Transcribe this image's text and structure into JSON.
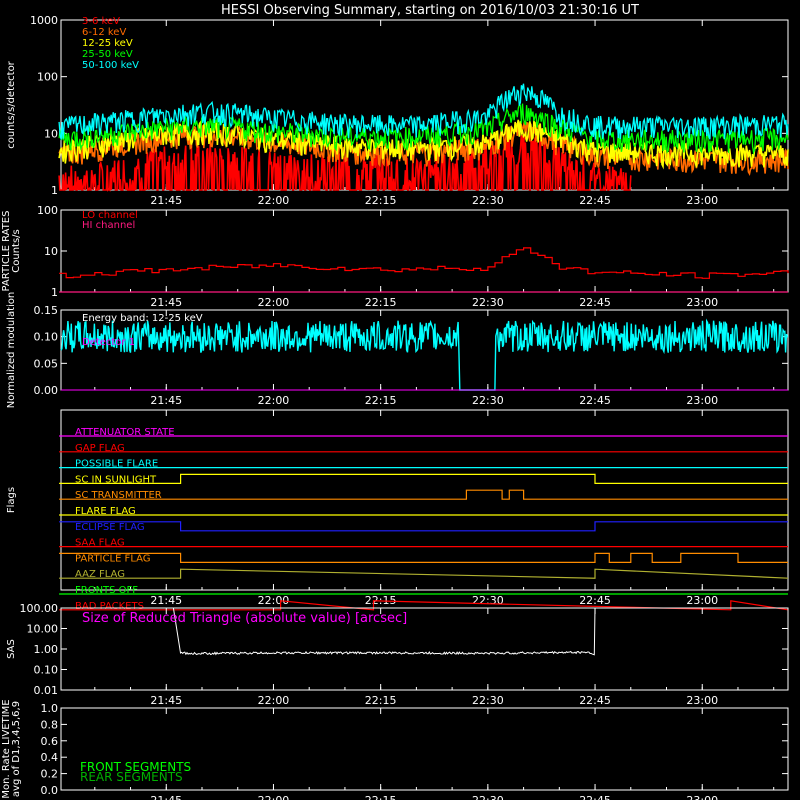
{
  "title": "HESSI Observing Summary, starting on 2016/10/03 21:30:16 UT",
  "time_axis": {
    "ticks": [
      "21:45",
      "22:00",
      "22:15",
      "22:30",
      "22:45",
      "23:00"
    ]
  },
  "colors": {
    "axis": "#ffffff",
    "e3_6": "#ff0000",
    "e6_12": "#ff6a00",
    "e12_25": "#ffff00",
    "e25_50": "#00ff00",
    "e50_100": "#00ffff",
    "lo_channel": "#ff0000",
    "hi_channel": "#ff1a80",
    "modulation": "#00ffff",
    "energy_band_text": "#ffffff",
    "detector_text": "#ff00ff",
    "magenta_flag": "#ff00ff",
    "red_flag": "#ff0000",
    "cyan_flag": "#00ffff",
    "yellow_flag": "#ffff00",
    "orange_flag": "#ff8c00",
    "blue_flag": "#2020ff",
    "olive_flag": "#b0b030",
    "green_flag": "#00ff00",
    "sas": "#ffffff",
    "front_segments": "#00ff00",
    "rear_segments": "#00b000"
  },
  "chart_data": [
    {
      "type": "line",
      "panel": "count-rates",
      "ylabel": "counts/s/detector",
      "yscale": "log",
      "ylim": [
        1,
        1000
      ],
      "y_ticks": [
        "1",
        "10",
        "100",
        "1000"
      ],
      "legend_placement": "top-left",
      "series": [
        {
          "name": "3-6 keV",
          "x": [
            "21:30",
            "21:35",
            "21:40",
            "21:45",
            "21:50",
            "21:55",
            "22:00",
            "22:10",
            "22:20",
            "22:25",
            "22:30",
            "22:35",
            "22:40",
            "22:45",
            "22:50"
          ],
          "values": [
            1.3,
            1.5,
            2,
            3,
            3.5,
            3,
            2.5,
            2.2,
            2,
            2.2,
            3,
            5,
            3,
            1.5,
            1.2
          ]
        },
        {
          "name": "6-12 keV",
          "x": [
            "21:30",
            "21:40",
            "21:45",
            "21:50",
            "21:55",
            "22:00",
            "22:10",
            "22:20",
            "22:30",
            "22:35",
            "22:40",
            "22:45",
            "23:00",
            "23:12"
          ],
          "values": [
            4,
            7,
            9,
            10,
            9,
            7,
            5,
            4.5,
            6,
            12,
            7,
            4,
            3.5,
            3.5
          ]
        },
        {
          "name": "12-25 keV",
          "x": [
            "21:30",
            "21:40",
            "21:45",
            "21:50",
            "21:55",
            "22:00",
            "22:10",
            "22:20",
            "22:30",
            "22:35",
            "22:40",
            "22:45",
            "23:00",
            "23:12"
          ],
          "values": [
            5,
            8,
            10,
            11,
            10,
            8,
            6,
            5.5,
            7,
            13,
            8,
            5,
            4.5,
            4.5
          ]
        },
        {
          "name": "25-50 keV",
          "x": [
            "21:30",
            "21:40",
            "21:45",
            "21:50",
            "21:55",
            "22:00",
            "22:10",
            "22:20",
            "22:30",
            "22:35",
            "22:40",
            "22:45",
            "23:00",
            "23:12"
          ],
          "values": [
            8,
            11,
            13,
            14,
            13,
            11,
            9,
            9,
            12,
            25,
            13,
            8,
            8,
            8.5
          ]
        },
        {
          "name": "50-100 keV",
          "x": [
            "21:30",
            "21:40",
            "21:45",
            "21:50",
            "21:55",
            "22:00",
            "22:10",
            "22:20",
            "22:30",
            "22:35",
            "22:40",
            "22:45",
            "23:00",
            "23:12"
          ],
          "values": [
            13,
            18,
            22,
            25,
            23,
            19,
            15,
            14,
            20,
            60,
            22,
            14,
            14,
            15
          ]
        }
      ]
    },
    {
      "type": "line",
      "panel": "particle-rates",
      "ylabel": "PARTICLE RATES Counts/s",
      "yscale": "log",
      "ylim": [
        1,
        100
      ],
      "y_ticks": [
        "1",
        "10",
        "100"
      ],
      "legend_placement": "top-left",
      "series": [
        {
          "name": "LO channel",
          "x": [
            "21:30",
            "21:45",
            "22:00",
            "22:15",
            "22:30",
            "22:35",
            "22:40",
            "22:45",
            "23:00",
            "23:12"
          ],
          "values": [
            2.5,
            3.5,
            4.5,
            3.5,
            4,
            11,
            4,
            3,
            2.5,
            3
          ]
        },
        {
          "name": "HI channel",
          "x": [
            "21:30",
            "23:12"
          ],
          "values": [
            1,
            1
          ]
        }
      ]
    },
    {
      "type": "line",
      "panel": "modulation",
      "ylabel": "Normalized modulation",
      "ylim": [
        0,
        0.15
      ],
      "y_ticks": [
        "0.00",
        "0.05",
        "0.10",
        "0.15"
      ],
      "annotations": [
        "Energy band: 12-25 keV"
      ],
      "legend_placement": "top-left",
      "series": [
        {
          "name": "Detector 1",
          "x": [
            "21:30",
            "22:26",
            "22:26",
            "22:31",
            "22:31",
            "23:12"
          ],
          "values": [
            0.1,
            0.1,
            0,
            0,
            0.1,
            0.1
          ]
        }
      ]
    },
    {
      "type": "line",
      "panel": "flags",
      "ylabel": "Flags",
      "series": [
        {
          "name": "ATTENUATOR STATE",
          "color_key": "magenta_flag",
          "x": [
            "21:30",
            "23:12"
          ],
          "values": [
            0,
            0
          ]
        },
        {
          "name": "GAP FLAG",
          "color_key": "red_flag",
          "x": [
            "21:30",
            "23:12"
          ],
          "values": [
            0,
            0
          ]
        },
        {
          "name": "POSSIBLE FLARE",
          "color_key": "cyan_flag",
          "x": [
            "21:30",
            "23:12"
          ],
          "values": [
            0,
            0
          ]
        },
        {
          "name": "SC IN SUNLIGHT",
          "color_key": "yellow_flag",
          "x": [
            "21:30",
            "21:47",
            "21:47",
            "22:45",
            "22:45",
            "23:12"
          ],
          "values": [
            0,
            0,
            1,
            1,
            0,
            0
          ]
        },
        {
          "name": "SC TRANSMITTER",
          "color_key": "orange_flag",
          "x": [
            "21:30",
            "22:27",
            "22:27",
            "22:32",
            "22:32",
            "22:33",
            "22:33",
            "22:35",
            "22:35",
            "23:12"
          ],
          "values": [
            0,
            0,
            1,
            1,
            0,
            0,
            1,
            1,
            0,
            0
          ]
        },
        {
          "name": "FLARE FLAG",
          "color_key": "yellow_flag",
          "x": [
            "21:30",
            "23:12"
          ],
          "values": [
            0,
            0
          ]
        },
        {
          "name": "ECLIPSE FLAG",
          "color_key": "blue_flag",
          "x": [
            "21:30",
            "21:47",
            "21:47",
            "22:45",
            "22:45",
            "23:12"
          ],
          "values": [
            1,
            1,
            0,
            0,
            1,
            1
          ]
        },
        {
          "name": "SAA FLAG",
          "color_key": "red_flag",
          "x": [
            "21:30",
            "23:12"
          ],
          "values": [
            0,
            0
          ]
        },
        {
          "name": "PARTICLE FLAG",
          "color_key": "orange_flag",
          "x": [
            "21:30",
            "21:47",
            "21:47",
            "22:45",
            "22:45",
            "22:47",
            "22:47",
            "22:50",
            "22:50",
            "22:53",
            "22:53",
            "22:57",
            "22:57",
            "23:05",
            "23:05",
            "23:12"
          ],
          "values": [
            1,
            1,
            0,
            0,
            1,
            1,
            0,
            0,
            1,
            1,
            0,
            0,
            1,
            1,
            0,
            0
          ]
        },
        {
          "name": "AAZ FLAG",
          "color_key": "olive_flag",
          "x": [
            "21:30",
            "21:47",
            "21:47",
            "22:45",
            "22:45",
            "23:12"
          ],
          "values": [
            0,
            0,
            1,
            0,
            1,
            0
          ]
        },
        {
          "name": "FRONTS OFF",
          "color_key": "green_flag",
          "x": [
            "21:30",
            "23:12"
          ],
          "values": [
            0,
            0
          ]
        },
        {
          "name": "BAD PACKETS",
          "color_key": "red_flag",
          "x": [
            "21:30",
            "22:01",
            "22:01",
            "22:14",
            "22:14",
            "23:04",
            "23:04",
            "23:12"
          ],
          "values": [
            0,
            0,
            1,
            0,
            1,
            0,
            1,
            0
          ]
        }
      ]
    },
    {
      "type": "line",
      "panel": "sas",
      "ylabel": "SAS",
      "yscale": "log",
      "ylim": [
        0.01,
        100
      ],
      "y_ticks": [
        "0.01",
        "0.10",
        "1.00",
        "10.00",
        "100.00"
      ],
      "annotations": [
        "Size of Reduced Triangle (absolute value) [arcsec]"
      ],
      "series": [
        {
          "name": "reduced-triangle-size",
          "x": [
            "21:46",
            "21:47",
            "21:48",
            "22:00",
            "22:15",
            "22:30",
            "22:44",
            "22:45",
            "22:45"
          ],
          "values": [
            100,
            0.7,
            0.6,
            0.65,
            0.65,
            0.62,
            0.7,
            0.5,
            100
          ]
        }
      ]
    },
    {
      "type": "line",
      "panel": "livetime",
      "ylabel": "Mon. Rate LIVETIME avg of D1,3,4,5,6,9",
      "ylim": [
        0,
        1
      ],
      "y_ticks": [
        "0.0",
        "0.2",
        "0.4",
        "0.6",
        "0.8",
        "1.0"
      ],
      "legend_placement": "bottom-left",
      "series": [
        {
          "name": "FRONT SEGMENTS",
          "x": [],
          "values": []
        },
        {
          "name": "REAR SEGMENTS",
          "x": [],
          "values": []
        }
      ]
    }
  ]
}
